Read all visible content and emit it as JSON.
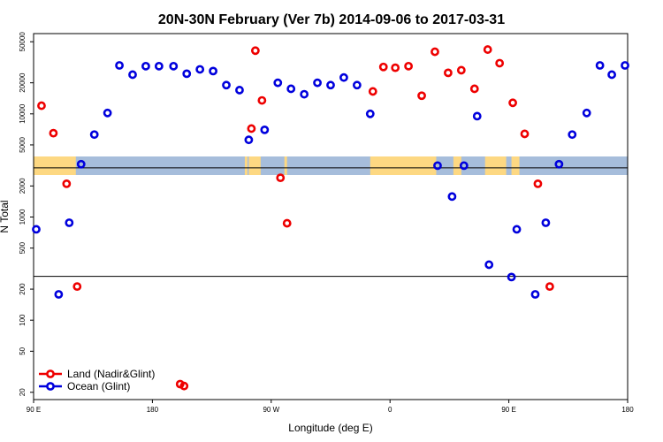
{
  "chart_data": {
    "type": "scatter",
    "title": "20N-30N February (Ver 7b)   2014-09-06 to 2017-03-31",
    "xlabel": "Longitude (deg E)",
    "ylabel": "N Total",
    "x_scale": "longitude, 90E to 180",
    "xlim": [
      90,
      540
    ],
    "y_scale": "log",
    "ylim": [
      17,
      60000
    ],
    "x_ticks": [
      {
        "value": 90,
        "label": "90 E"
      },
      {
        "value": 180,
        "label": "180"
      },
      {
        "value": 270,
        "label": "90 W"
      },
      {
        "value": 360,
        "label": "0"
      },
      {
        "value": 450,
        "label": "90 E"
      },
      {
        "value": 540,
        "label": "180"
      }
    ],
    "y_ticks": [
      {
        "value": 20,
        "label": "20"
      },
      {
        "value": 50,
        "label": "50"
      },
      {
        "value": 100,
        "label": "100"
      },
      {
        "value": 200,
        "label": "200"
      },
      {
        "value": 500,
        "label": "500"
      },
      {
        "value": 1000,
        "label": "1000"
      },
      {
        "value": 2000,
        "label": "2000"
      },
      {
        "value": 5000,
        "label": "5000"
      },
      {
        "value": 10000,
        "label": "10000"
      },
      {
        "value": 20000,
        "label": "20000"
      },
      {
        "value": 50000,
        "label": "50000"
      }
    ],
    "horizontal_lines": [
      266,
      3000
    ],
    "colors": {
      "land": "#ee0000",
      "ocean": "#0000dd",
      "map_land": "#fdd882",
      "map_ocean": "#a6bddb",
      "frame": "#000000"
    },
    "legend_position": "bottom-left",
    "series": [
      {
        "name": "Land (Nadir&Glint)",
        "key": "land",
        "points": [
          [
            96,
            12000
          ],
          [
            105,
            6500
          ],
          [
            115,
            2100
          ],
          [
            123,
            212
          ],
          [
            201,
            24
          ],
          [
            204,
            23
          ],
          [
            255,
            7200
          ],
          [
            258,
            41000
          ],
          [
            263,
            13500
          ],
          [
            277,
            2400
          ],
          [
            282,
            870
          ],
          [
            347,
            16500
          ],
          [
            355,
            28500
          ],
          [
            364,
            28000
          ],
          [
            374,
            29000
          ],
          [
            384,
            15000
          ],
          [
            394,
            40000
          ],
          [
            404,
            25000
          ],
          [
            414,
            26500
          ],
          [
            424,
            17500
          ],
          [
            434,
            42000
          ],
          [
            443,
            31000
          ],
          [
            453,
            12800
          ],
          [
            462,
            6400
          ],
          [
            472,
            2100
          ],
          [
            481,
            212
          ]
        ]
      },
      {
        "name": "Ocean (Glint)",
        "key": "ocean",
        "points": [
          [
            92,
            760
          ],
          [
            109,
            178
          ],
          [
            117,
            880
          ],
          [
            126,
            3250
          ],
          [
            136,
            6300
          ],
          [
            146,
            10200
          ],
          [
            155,
            29500
          ],
          [
            165,
            24000
          ],
          [
            175,
            29000
          ],
          [
            185,
            29000
          ],
          [
            196,
            29000
          ],
          [
            206,
            24500
          ],
          [
            216,
            27000
          ],
          [
            226,
            26000
          ],
          [
            236,
            19000
          ],
          [
            246,
            17000
          ],
          [
            253,
            5600
          ],
          [
            265,
            7000
          ],
          [
            275,
            20000
          ],
          [
            285,
            17500
          ],
          [
            295,
            15500
          ],
          [
            305,
            20000
          ],
          [
            315,
            19000
          ],
          [
            325,
            22500
          ],
          [
            335,
            19000
          ],
          [
            345,
            10000
          ],
          [
            396,
            3150
          ],
          [
            407,
            1580
          ],
          [
            416,
            3150
          ],
          [
            426,
            9500
          ],
          [
            435,
            345
          ],
          [
            452,
            262
          ],
          [
            456,
            760
          ],
          [
            470,
            178
          ],
          [
            478,
            880
          ],
          [
            488,
            3250
          ],
          [
            498,
            6300
          ],
          [
            509,
            10200
          ],
          [
            519,
            29500
          ],
          [
            528,
            24000
          ],
          [
            538,
            29500
          ]
        ]
      }
    ]
  }
}
